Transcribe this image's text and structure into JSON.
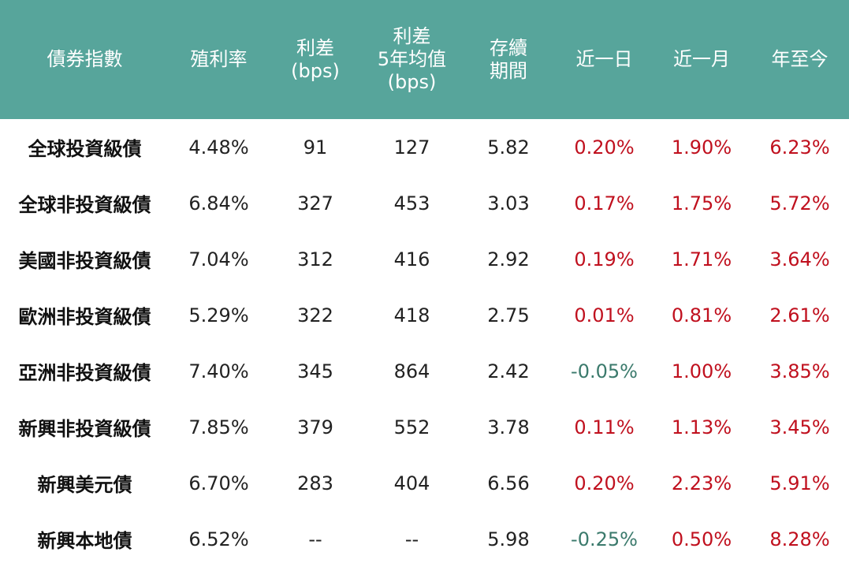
{
  "colors": {
    "header_bg": "#57a59b",
    "header_text": "#ffffff",
    "positive": "#c0101e",
    "negative": "#3b7a6c",
    "body_text": "#222222"
  },
  "headers": {
    "index": "債券指數",
    "yield": "殖利率",
    "spread": [
      "利差",
      "(bps)"
    ],
    "spread_5y": [
      "利差",
      "5年均值",
      "(bps)"
    ],
    "duration": [
      "存續",
      "期間"
    ],
    "d1": "近一日",
    "m1": "近一月",
    "ytd": "年至今"
  },
  "rows": [
    {
      "name": "全球投資級債",
      "yield": "4.48%",
      "spread": "91",
      "spread_5y": "127",
      "duration": "5.82",
      "d1": "0.20%",
      "m1": "1.90%",
      "ytd": "6.23%"
    },
    {
      "name": "全球非投資級債",
      "yield": "6.84%",
      "spread": "327",
      "spread_5y": "453",
      "duration": "3.03",
      "d1": "0.17%",
      "m1": "1.75%",
      "ytd": "5.72%"
    },
    {
      "name": "美國非投資級債",
      "yield": "7.04%",
      "spread": "312",
      "spread_5y": "416",
      "duration": "2.92",
      "d1": "0.19%",
      "m1": "1.71%",
      "ytd": "3.64%"
    },
    {
      "name": "歐洲非投資級債",
      "yield": "5.29%",
      "spread": "322",
      "spread_5y": "418",
      "duration": "2.75",
      "d1": "0.01%",
      "m1": "0.81%",
      "ytd": "2.61%"
    },
    {
      "name": "亞洲非投資級債",
      "yield": "7.40%",
      "spread": "345",
      "spread_5y": "864",
      "duration": "2.42",
      "d1": "-0.05%",
      "m1": "1.00%",
      "ytd": "3.85%"
    },
    {
      "name": "新興非投資級債",
      "yield": "7.85%",
      "spread": "379",
      "spread_5y": "552",
      "duration": "3.78",
      "d1": "0.11%",
      "m1": "1.13%",
      "ytd": "3.45%"
    },
    {
      "name": "新興美元債",
      "yield": "6.70%",
      "spread": "283",
      "spread_5y": "404",
      "duration": "6.56",
      "d1": "0.20%",
      "m1": "2.23%",
      "ytd": "5.91%"
    },
    {
      "name": "新興本地債",
      "yield": "6.52%",
      "spread": "--",
      "spread_5y": "--",
      "duration": "5.98",
      "d1": "-0.25%",
      "m1": "0.50%",
      "ytd": "8.28%"
    }
  ]
}
